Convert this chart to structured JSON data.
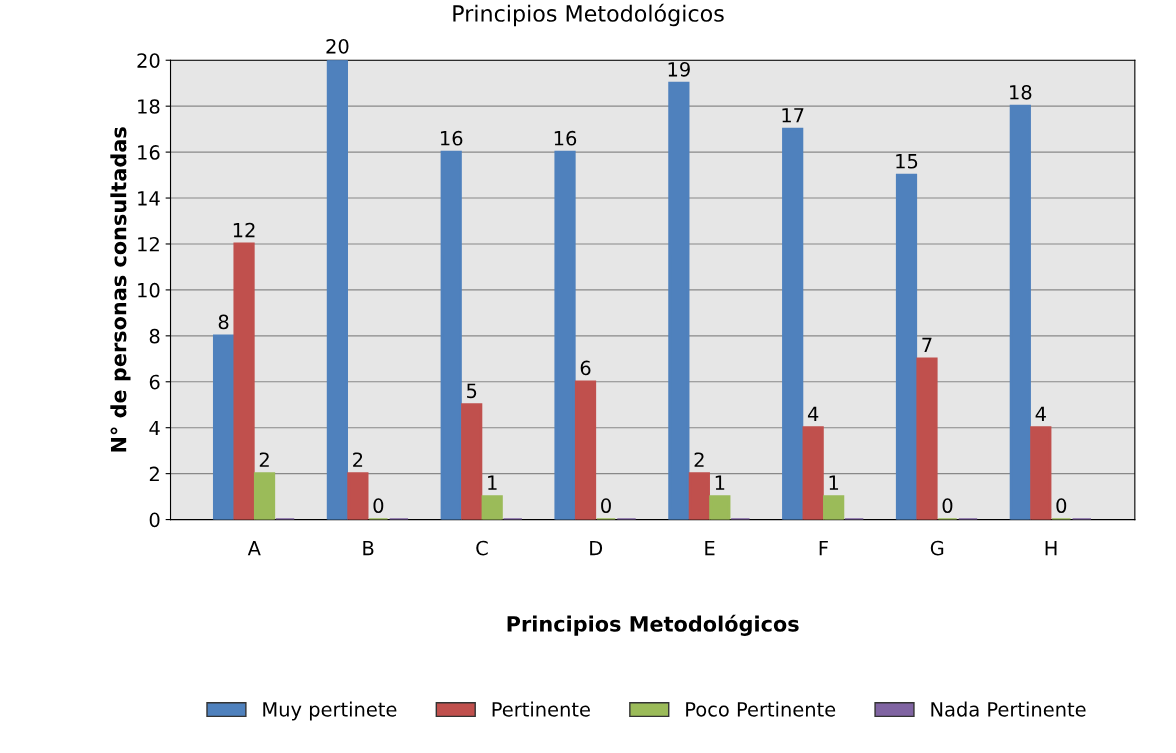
{
  "chart_data": {
    "type": "bar",
    "title": "Principios Metodológicos",
    "xlabel": "Principios Metodológicos",
    "ylabel": "N° de personas consultadas",
    "categories": [
      "A",
      "B",
      "C",
      "D",
      "E",
      "F",
      "G",
      "H"
    ],
    "series": [
      {
        "name": "Muy pertinete",
        "color": "#4f81bd",
        "values": [
          8,
          20,
          16,
          16,
          19,
          17,
          15,
          18
        ],
        "value_labels": [
          "8",
          "20",
          "16",
          "16",
          "19",
          "17",
          "15",
          "18"
        ]
      },
      {
        "name": "Pertinente",
        "color": "#c0504d",
        "values": [
          12,
          2,
          5,
          6,
          2,
          4,
          7,
          4
        ],
        "value_labels": [
          "12",
          "2",
          "5",
          "6",
          "2",
          "4",
          "7",
          "4"
        ]
      },
      {
        "name": "Poco Pertinente",
        "color": "#9bbb59",
        "values": [
          2,
          0,
          1,
          0,
          1,
          1,
          0,
          0
        ],
        "value_labels": [
          "2",
          "0",
          "1",
          "0",
          "1",
          "1",
          "0",
          "0"
        ]
      },
      {
        "name": "Nada Pertinente",
        "color": "#8064a2",
        "values": [
          0,
          0,
          0,
          0,
          0,
          0,
          0,
          0
        ]
      }
    ],
    "ylim": [
      0,
      20
    ],
    "yticks": [
      0,
      2,
      4,
      6,
      8,
      10,
      12,
      14,
      16,
      18,
      20
    ],
    "grid": "y",
    "legend": "bottom"
  }
}
